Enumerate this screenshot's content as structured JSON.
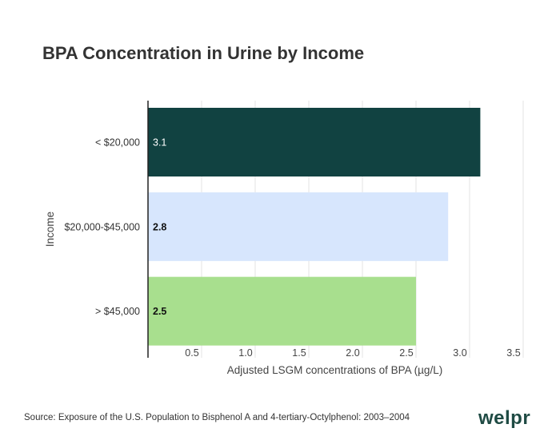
{
  "chart_data": {
    "type": "bar",
    "orientation": "horizontal",
    "title": "BPA Concentration in Urine by Income",
    "xlabel": "Adjusted LSGM concentrations of BPA (µg/L)",
    "ylabel": "Income",
    "categories": [
      "< $20,000",
      "$20,000-$45,000",
      "> $45,000"
    ],
    "values": [
      3.1,
      2.8,
      2.5
    ],
    "value_labels": [
      "3.1",
      "2.8",
      "2.5"
    ],
    "colors": [
      "#114241",
      "#d7e6fd",
      "#a8df8e"
    ],
    "xlim": [
      0,
      3.5
    ],
    "xticks": [
      0.5,
      1.0,
      1.5,
      2.0,
      2.5,
      3.0,
      3.5
    ],
    "xtick_labels": [
      "0.5",
      "1.0",
      "1.5",
      "2.0",
      "2.5",
      "3.0",
      "3.5"
    ],
    "grid": true
  },
  "footer": {
    "source": "Source: Exposure of the U.S. Population to Bisphenol A and 4-tertiary-Octylphenol: 2003–2004",
    "logo": "welpr"
  }
}
